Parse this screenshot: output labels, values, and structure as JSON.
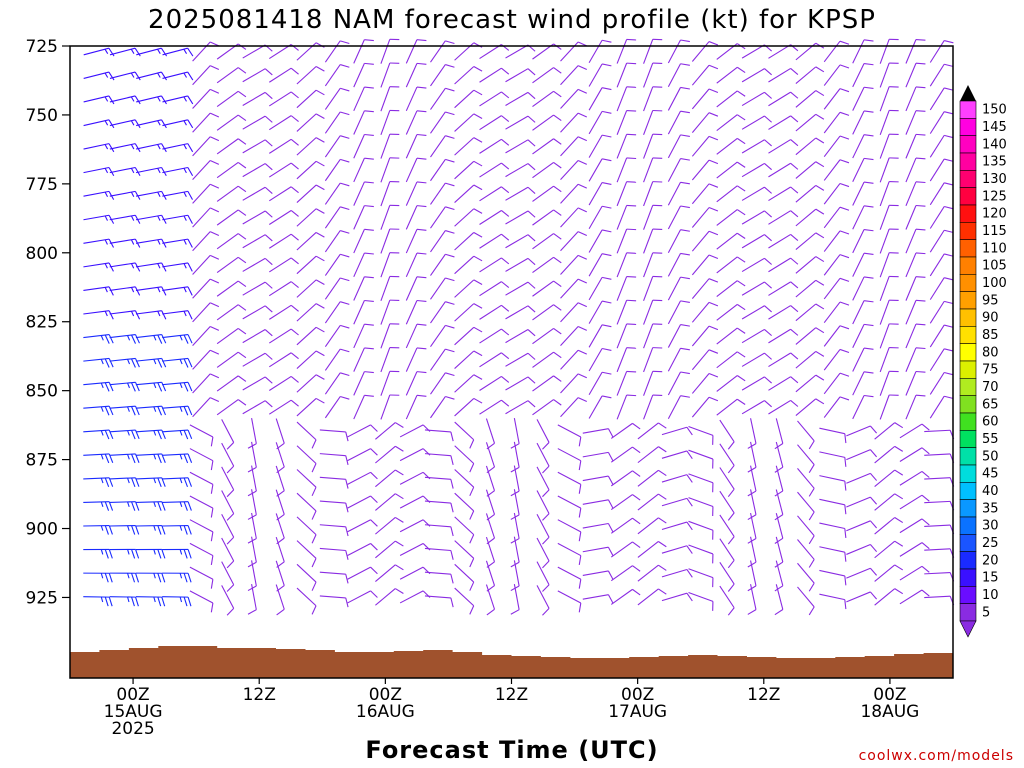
{
  "chart_data": {
    "type": "wind-barb-profile",
    "title": "2025081418 NAM forecast wind profile (kt) for KPSP",
    "xlabel": "Forecast Time (UTC)",
    "ylabel": "",
    "y_ticks": [
      "725",
      "750",
      "775",
      "800",
      "825",
      "850",
      "875",
      "900",
      "925"
    ],
    "y_range": [
      725,
      940
    ],
    "x_ticks": [
      {
        "hours": 6,
        "lines": [
          "00Z",
          "15AUG",
          "2025"
        ]
      },
      {
        "hours": 18,
        "lines": [
          "12Z"
        ]
      },
      {
        "hours": 30,
        "lines": [
          "00Z",
          "16AUG"
        ]
      },
      {
        "hours": 42,
        "lines": [
          "12Z"
        ]
      },
      {
        "hours": 54,
        "lines": [
          "00Z",
          "17AUG"
        ]
      },
      {
        "hours": 66,
        "lines": [
          "12Z"
        ]
      },
      {
        "hours": 78,
        "lines": [
          "00Z",
          "18AUG"
        ]
      }
    ],
    "x_range": [
      0,
      84
    ],
    "colorbar": {
      "units": "kt",
      "values": [
        5,
        10,
        15,
        20,
        25,
        30,
        35,
        40,
        45,
        50,
        55,
        60,
        65,
        70,
        75,
        80,
        85,
        90,
        95,
        100,
        105,
        110,
        115,
        120,
        125,
        130,
        135,
        140,
        145,
        150
      ],
      "colors": [
        "#8a2be2",
        "#6a0dff",
        "#3a10ff",
        "#1a2bff",
        "#1a55ff",
        "#0a72ff",
        "#0a98ff",
        "#00c0ff",
        "#00dddd",
        "#00e0a8",
        "#00e060",
        "#40e020",
        "#80e020",
        "#b0ec20",
        "#dcf000",
        "#ffff00",
        "#ffe000",
        "#ffc000",
        "#ffa000",
        "#ff9000",
        "#ff8000",
        "#ff6000",
        "#ff3000",
        "#ff1010",
        "#ff0040",
        "#ff0070",
        "#ff00a0",
        "#ff00c0",
        "#ff00e0",
        "#ff40ff"
      ]
    },
    "terrain_color": "#a0522d",
    "surface_pressure_mb": 935,
    "sample_winds_kt": {
      "day1_lowlevel": 25,
      "day1_upper": 15,
      "later_periods": 10
    }
  },
  "credit": "coolwx.com/models"
}
